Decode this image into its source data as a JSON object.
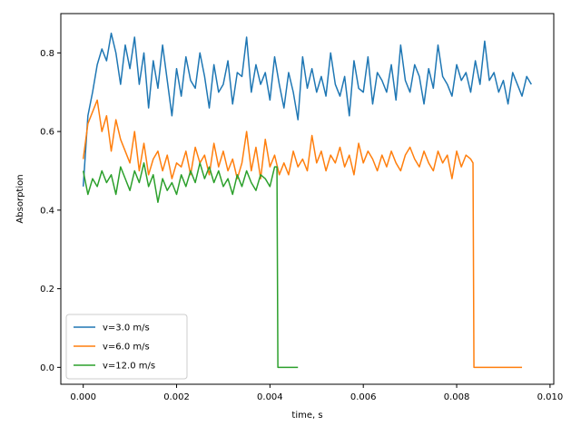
{
  "chart_data": {
    "type": "line",
    "title": "",
    "xlabel": "time, s",
    "ylabel": "Absorption",
    "xlim": [
      -0.00048,
      0.01008
    ],
    "ylim": [
      -0.043,
      0.9
    ],
    "xticks": [
      {
        "value": 0.0,
        "label": "0.000"
      },
      {
        "value": 0.002,
        "label": "0.002"
      },
      {
        "value": 0.004,
        "label": "0.004"
      },
      {
        "value": 0.006,
        "label": "0.006"
      },
      {
        "value": 0.008,
        "label": "0.008"
      },
      {
        "value": 0.01,
        "label": "0.010"
      }
    ],
    "yticks": [
      {
        "value": 0.0,
        "label": "0.0"
      },
      {
        "value": 0.2,
        "label": "0.2"
      },
      {
        "value": 0.4,
        "label": "0.4"
      },
      {
        "value": 0.6,
        "label": "0.6"
      },
      {
        "value": 0.8,
        "label": "0.8"
      }
    ],
    "grid": false,
    "legend_position": "lower-left",
    "series": [
      {
        "name": "v=3.0 m/s",
        "color": "#1f77b4",
        "x": [
          0.0,
          0.0001,
          0.0002,
          0.0003,
          0.0004,
          0.0005,
          0.0006,
          0.0007,
          0.0008,
          0.0009,
          0.001,
          0.0011,
          0.0012,
          0.0013,
          0.0014,
          0.0015,
          0.0016,
          0.0017,
          0.0018,
          0.0019,
          0.002,
          0.0021,
          0.0022,
          0.0023,
          0.0024,
          0.0025,
          0.0026,
          0.0027,
          0.0028,
          0.0029,
          0.003,
          0.0031,
          0.0032,
          0.0033,
          0.0034,
          0.0035,
          0.0036,
          0.0037,
          0.0038,
          0.0039,
          0.004,
          0.0041,
          0.0042,
          0.0043,
          0.0044,
          0.0045,
          0.0046,
          0.0047,
          0.0048,
          0.0049,
          0.005,
          0.0051,
          0.0052,
          0.0053,
          0.0054,
          0.0055,
          0.0056,
          0.0057,
          0.0058,
          0.0059,
          0.006,
          0.0061,
          0.0062,
          0.0063,
          0.0064,
          0.0065,
          0.0066,
          0.0067,
          0.0068,
          0.0069,
          0.007,
          0.0071,
          0.0072,
          0.0073,
          0.0074,
          0.0075,
          0.0076,
          0.0077,
          0.0078,
          0.0079,
          0.008,
          0.0081,
          0.0082,
          0.0083,
          0.0084,
          0.0085,
          0.0086,
          0.0087,
          0.0088,
          0.0089,
          0.009,
          0.0091,
          0.0092,
          0.0093,
          0.0094,
          0.0095,
          0.0096
        ],
        "y": [
          0.46,
          0.64,
          0.7,
          0.77,
          0.81,
          0.78,
          0.85,
          0.8,
          0.72,
          0.82,
          0.76,
          0.84,
          0.72,
          0.8,
          0.66,
          0.78,
          0.71,
          0.82,
          0.73,
          0.64,
          0.76,
          0.69,
          0.79,
          0.73,
          0.71,
          0.8,
          0.74,
          0.66,
          0.77,
          0.7,
          0.72,
          0.78,
          0.67,
          0.75,
          0.74,
          0.84,
          0.7,
          0.77,
          0.72,
          0.75,
          0.68,
          0.79,
          0.72,
          0.66,
          0.75,
          0.7,
          0.63,
          0.79,
          0.71,
          0.76,
          0.7,
          0.74,
          0.69,
          0.8,
          0.72,
          0.69,
          0.74,
          0.64,
          0.78,
          0.71,
          0.7,
          0.79,
          0.67,
          0.75,
          0.73,
          0.7,
          0.77,
          0.68,
          0.82,
          0.73,
          0.7,
          0.77,
          0.74,
          0.67,
          0.76,
          0.71,
          0.82,
          0.74,
          0.72,
          0.69,
          0.77,
          0.73,
          0.75,
          0.7,
          0.78,
          0.72,
          0.83,
          0.73,
          0.75,
          0.7,
          0.73,
          0.67,
          0.75,
          0.72,
          0.69,
          0.74,
          0.72
        ]
      },
      {
        "name": "v=6.0 m/s",
        "color": "#ff7f0e",
        "x": [
          0.0,
          0.0001,
          0.0002,
          0.0003,
          0.0004,
          0.0005,
          0.0006,
          0.0007,
          0.0008,
          0.0009,
          0.001,
          0.0011,
          0.0012,
          0.0013,
          0.0014,
          0.0015,
          0.0016,
          0.0017,
          0.0018,
          0.0019,
          0.002,
          0.0021,
          0.0022,
          0.0023,
          0.0024,
          0.0025,
          0.0026,
          0.0027,
          0.0028,
          0.0029,
          0.003,
          0.0031,
          0.0032,
          0.0033,
          0.0034,
          0.0035,
          0.0036,
          0.0037,
          0.0038,
          0.0039,
          0.004,
          0.0041,
          0.0042,
          0.0043,
          0.0044,
          0.0045,
          0.0046,
          0.0047,
          0.0048,
          0.0049,
          0.005,
          0.0051,
          0.0052,
          0.0053,
          0.0054,
          0.0055,
          0.0056,
          0.0057,
          0.0058,
          0.0059,
          0.006,
          0.0061,
          0.0062,
          0.0063,
          0.0064,
          0.0065,
          0.0066,
          0.0067,
          0.0068,
          0.0069,
          0.007,
          0.0071,
          0.0072,
          0.0073,
          0.0074,
          0.0075,
          0.0076,
          0.0077,
          0.0078,
          0.0079,
          0.008,
          0.0081,
          0.0082,
          0.0083,
          0.00835,
          0.00837,
          0.0086,
          0.0088,
          0.009,
          0.0092,
          0.0094
        ],
        "y": [
          0.53,
          0.62,
          0.65,
          0.68,
          0.6,
          0.64,
          0.55,
          0.63,
          0.58,
          0.55,
          0.52,
          0.6,
          0.5,
          0.57,
          0.49,
          0.53,
          0.55,
          0.5,
          0.54,
          0.48,
          0.52,
          0.51,
          0.55,
          0.49,
          0.56,
          0.52,
          0.54,
          0.49,
          0.57,
          0.51,
          0.55,
          0.5,
          0.53,
          0.48,
          0.52,
          0.6,
          0.5,
          0.56,
          0.48,
          0.58,
          0.51,
          0.54,
          0.49,
          0.52,
          0.49,
          0.55,
          0.51,
          0.53,
          0.5,
          0.59,
          0.52,
          0.55,
          0.5,
          0.54,
          0.52,
          0.56,
          0.51,
          0.54,
          0.49,
          0.57,
          0.52,
          0.55,
          0.53,
          0.5,
          0.54,
          0.51,
          0.55,
          0.52,
          0.5,
          0.54,
          0.56,
          0.53,
          0.51,
          0.55,
          0.52,
          0.5,
          0.55,
          0.52,
          0.54,
          0.48,
          0.55,
          0.51,
          0.54,
          0.53,
          0.52,
          0.0,
          0.0,
          0.0,
          0.0,
          0.0,
          0.0
        ]
      },
      {
        "name": "v=12.0 m/s",
        "color": "#2ca02c",
        "x": [
          0.0,
          0.0001,
          0.0002,
          0.0003,
          0.0004,
          0.0005,
          0.0006,
          0.0007,
          0.0008,
          0.0009,
          0.001,
          0.0011,
          0.0012,
          0.0013,
          0.0014,
          0.0015,
          0.0016,
          0.0017,
          0.0018,
          0.0019,
          0.002,
          0.0021,
          0.0022,
          0.0023,
          0.0024,
          0.0025,
          0.0026,
          0.0027,
          0.0028,
          0.0029,
          0.003,
          0.0031,
          0.0032,
          0.0033,
          0.0034,
          0.0035,
          0.0036,
          0.0037,
          0.0038,
          0.0039,
          0.004,
          0.0041,
          0.00415,
          0.00417,
          0.0043,
          0.0044,
          0.0046
        ],
        "y": [
          0.5,
          0.44,
          0.48,
          0.46,
          0.5,
          0.47,
          0.49,
          0.44,
          0.51,
          0.48,
          0.45,
          0.5,
          0.47,
          0.52,
          0.46,
          0.49,
          0.42,
          0.48,
          0.45,
          0.47,
          0.44,
          0.49,
          0.46,
          0.5,
          0.47,
          0.52,
          0.48,
          0.51,
          0.47,
          0.5,
          0.46,
          0.48,
          0.44,
          0.49,
          0.46,
          0.5,
          0.47,
          0.45,
          0.49,
          0.48,
          0.46,
          0.51,
          0.51,
          0.0,
          0.0,
          0.0,
          0.0
        ]
      }
    ]
  }
}
